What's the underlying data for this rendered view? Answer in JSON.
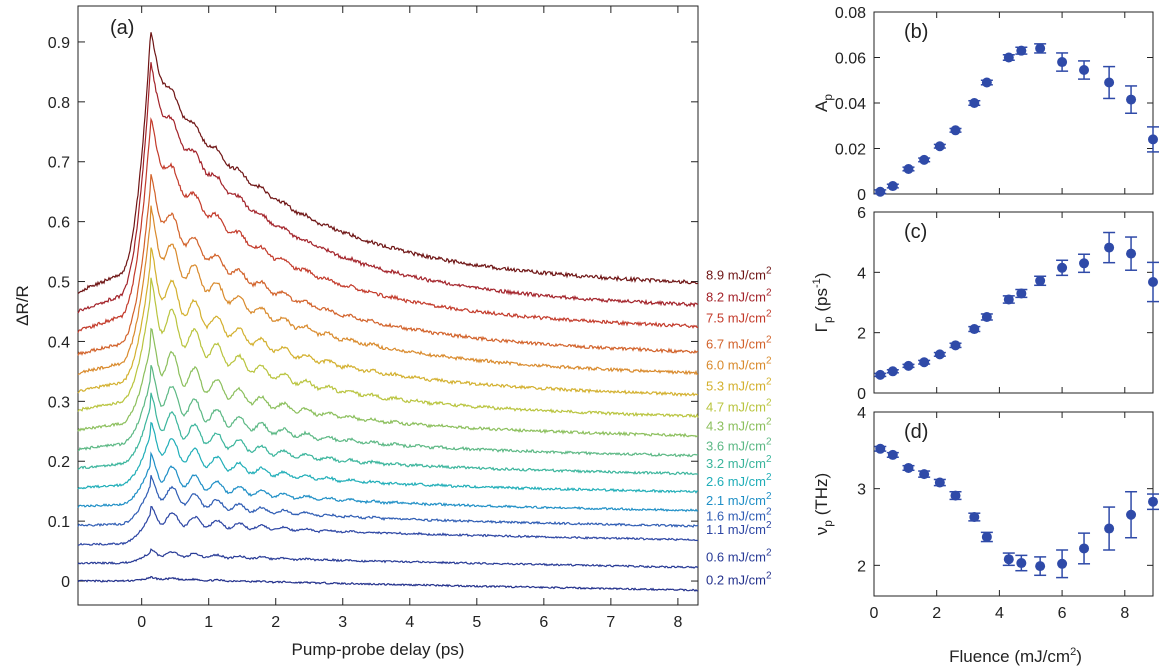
{
  "chart_data": [
    {
      "panel_label": "(a)",
      "type": "line",
      "xlabel": "Pump-probe delay (ps)",
      "ylabel": "ΔR/R",
      "xlim": [
        -0.95,
        8.3
      ],
      "ylim": [
        -0.04,
        0.96
      ],
      "xticks": [
        "0",
        "1",
        "2",
        "3",
        "4",
        "5",
        "6",
        "7",
        "8"
      ],
      "yticks": [
        "0",
        "0.1",
        "0.2",
        "0.3",
        "0.4",
        "0.5",
        "0.6",
        "0.7",
        "0.8",
        "0.9"
      ],
      "grid": false,
      "legend": "labels at right end of each trace",
      "label_unit": "mJ/cm",
      "label_exp": "2",
      "series": [
        {
          "name": "0.2",
          "color": "#22308c",
          "offset": 0.0,
          "pre": 0.0,
          "peak": 0.005,
          "end": 0.001,
          "osc": 0.001,
          "tau": 1.8
        },
        {
          "name": "0.6",
          "color": "#273a96",
          "offset": 0.03,
          "pre": 0.03,
          "peak": 0.048,
          "end": 0.039,
          "osc": 0.004,
          "tau": 1.6
        },
        {
          "name": "1.1",
          "color": "#2d46a4",
          "offset": 0.06,
          "pre": 0.062,
          "peak": 0.112,
          "end": 0.085,
          "osc": 0.01,
          "tau": 1.5
        },
        {
          "name": "1.6",
          "color": "#2f5db4",
          "offset": 0.09,
          "pre": 0.095,
          "peak": 0.16,
          "end": 0.108,
          "osc": 0.012,
          "tau": 1.4
        },
        {
          "name": "2.1",
          "color": "#1f8fc6",
          "offset": 0.12,
          "pre": 0.128,
          "peak": 0.195,
          "end": 0.134,
          "osc": 0.014,
          "tau": 1.4
        },
        {
          "name": "2.6",
          "color": "#20aeb8",
          "offset": 0.15,
          "pre": 0.16,
          "peak": 0.245,
          "end": 0.165,
          "osc": 0.016,
          "tau": 1.4
        },
        {
          "name": "3.2",
          "color": "#3bb59c",
          "offset": 0.18,
          "pre": 0.195,
          "peak": 0.29,
          "end": 0.195,
          "osc": 0.018,
          "tau": 1.5
        },
        {
          "name": "3.6",
          "color": "#5cb884",
          "offset": 0.21,
          "pre": 0.228,
          "peak": 0.335,
          "end": 0.225,
          "osc": 0.02,
          "tau": 1.6
        },
        {
          "name": "4.3",
          "color": "#8bbf5c",
          "offset": 0.24,
          "pre": 0.262,
          "peak": 0.395,
          "end": 0.258,
          "osc": 0.022,
          "tau": 1.7
        },
        {
          "name": "4.7",
          "color": "#b9c43e",
          "offset": 0.27,
          "pre": 0.298,
          "peak": 0.475,
          "end": 0.29,
          "osc": 0.024,
          "tau": 1.8
        },
        {
          "name": "5.3",
          "color": "#d3b02e",
          "offset": 0.3,
          "pre": 0.33,
          "peak": 0.53,
          "end": 0.325,
          "osc": 0.022,
          "tau": 1.9
        },
        {
          "name": "6.0",
          "color": "#d98a2c",
          "offset": 0.33,
          "pre": 0.362,
          "peak": 0.6,
          "end": 0.36,
          "osc": 0.02,
          "tau": 2.0
        },
        {
          "name": "6.7",
          "color": "#d2622a",
          "offset": 0.36,
          "pre": 0.395,
          "peak": 0.66,
          "end": 0.395,
          "osc": 0.016,
          "tau": 2.0
        },
        {
          "name": "7.5",
          "color": "#c33a2a",
          "offset": 0.39,
          "pre": 0.44,
          "peak": 0.76,
          "end": 0.438,
          "osc": 0.012,
          "tau": 1.9
        },
        {
          "name": "8.2",
          "color": "#a3232a",
          "offset": 0.42,
          "pre": 0.475,
          "peak": 0.855,
          "end": 0.473,
          "osc": 0.01,
          "tau": 1.9
        },
        {
          "name": "8.9",
          "color": "#6e1414",
          "offset": 0.45,
          "pre": 0.51,
          "peak": 0.91,
          "end": 0.51,
          "osc": 0.008,
          "tau": 1.9
        }
      ]
    },
    {
      "panel_label": "(b)",
      "type": "scatter",
      "ylabel_main": "A",
      "ylabel_sub": "p",
      "xlim": [
        0,
        8.9
      ],
      "ylim": [
        0,
        0.08
      ],
      "yticks": [
        0,
        0.02,
        0.04,
        0.06,
        0.08
      ],
      "ytick_labels": [
        "0",
        "0.02",
        "0.04",
        "0.06",
        "0.08"
      ],
      "color": "#2f4aa8",
      "x": [
        0.2,
        0.6,
        1.1,
        1.6,
        2.1,
        2.6,
        3.2,
        3.6,
        4.3,
        4.7,
        5.3,
        6.0,
        6.7,
        7.5,
        8.2,
        8.9
      ],
      "y": [
        0.001,
        0.0035,
        0.011,
        0.015,
        0.021,
        0.028,
        0.04,
        0.049,
        0.06,
        0.063,
        0.064,
        0.058,
        0.0545,
        0.049,
        0.0415,
        0.024
      ],
      "err": [
        0.0008,
        0.0008,
        0.0008,
        0.0008,
        0.0008,
        0.0008,
        0.001,
        0.001,
        0.0012,
        0.0015,
        0.002,
        0.004,
        0.004,
        0.007,
        0.006,
        0.0055
      ]
    },
    {
      "panel_label": "(c)",
      "type": "scatter",
      "ylabel_main": "Γ",
      "ylabel_sub": "p",
      "ylabel_unit": " (ps",
      "ylabel_sup": "-1",
      "ylabel_close": ")",
      "xlim": [
        0,
        8.9
      ],
      "ylim": [
        0,
        6
      ],
      "yticks": [
        0,
        2,
        4,
        6
      ],
      "ytick_labels": [
        "0",
        "2",
        "4",
        "6"
      ],
      "color": "#2f4aa8",
      "x": [
        0.2,
        0.6,
        1.1,
        1.6,
        2.1,
        2.6,
        3.2,
        3.6,
        4.3,
        4.7,
        5.3,
        6.0,
        6.7,
        7.5,
        8.2,
        8.9
      ],
      "y": [
        0.6,
        0.72,
        0.9,
        1.02,
        1.28,
        1.58,
        2.12,
        2.52,
        3.1,
        3.3,
        3.72,
        4.15,
        4.3,
        4.82,
        4.62,
        3.68
      ],
      "err": [
        0.05,
        0.05,
        0.05,
        0.06,
        0.06,
        0.07,
        0.08,
        0.1,
        0.12,
        0.13,
        0.15,
        0.25,
        0.3,
        0.5,
        0.55,
        0.65
      ]
    },
    {
      "panel_label": "(d)",
      "type": "scatter",
      "ylabel_main": "ν",
      "ylabel_sub": "p",
      "ylabel_unit": " (THz)",
      "xlabel_main": "Fluence (mJ/cm",
      "xlabel_sup": "2",
      "xlabel_close": ")",
      "xlim": [
        0,
        8.9
      ],
      "ylim": [
        1.6,
        4
      ],
      "yticks": [
        2,
        3,
        4
      ],
      "ytick_labels": [
        "2",
        "3",
        "4"
      ],
      "xticks": [
        0,
        2,
        4,
        6,
        8
      ],
      "xtick_labels": [
        "0",
        "2",
        "4",
        "6",
        "8"
      ],
      "color": "#2f4aa8",
      "x": [
        0.2,
        0.6,
        1.1,
        1.6,
        2.1,
        2.6,
        3.2,
        3.6,
        4.3,
        4.7,
        5.3,
        6.0,
        6.7,
        7.5,
        8.2,
        8.9
      ],
      "y": [
        3.52,
        3.44,
        3.27,
        3.19,
        3.08,
        2.91,
        2.63,
        2.37,
        2.08,
        2.03,
        1.99,
        2.02,
        2.22,
        2.48,
        2.66,
        2.83
      ],
      "err": [
        0.03,
        0.03,
        0.03,
        0.04,
        0.04,
        0.05,
        0.05,
        0.06,
        0.08,
        0.1,
        0.12,
        0.18,
        0.2,
        0.28,
        0.3,
        0.1
      ]
    }
  ]
}
